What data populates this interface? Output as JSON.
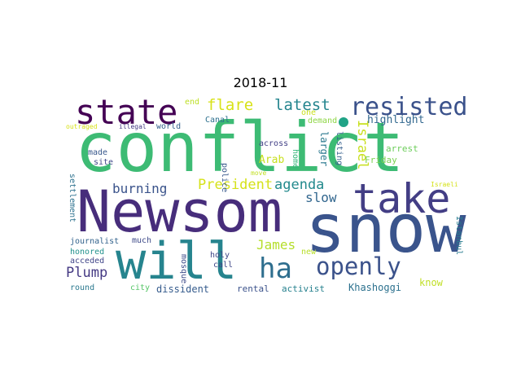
{
  "title": "2018-11",
  "words": [
    {
      "text": "conflict",
      "color": "#3dbb74",
      "vertical": false
    },
    {
      "text": "Newsom",
      "color": "#472d7b",
      "vertical": false
    },
    {
      "text": "snow",
      "color": "#3a548c",
      "vertical": false
    },
    {
      "text": "will",
      "color": "#26848e",
      "vertical": false
    },
    {
      "text": "take",
      "color": "#433e85",
      "vertical": false
    },
    {
      "text": "state",
      "color": "#440154",
      "vertical": false
    },
    {
      "text": "ha",
      "color": "#2e6e8e",
      "vertical": false
    },
    {
      "text": "openly",
      "color": "#3b528b",
      "vertical": false
    },
    {
      "text": "resisted",
      "color": "#3b528b",
      "vertical": false
    },
    {
      "text": "flare",
      "color": "#d8e219",
      "vertical": false
    },
    {
      "text": "latest",
      "color": "#25858e",
      "vertical": false
    },
    {
      "text": "President",
      "color": "#d5e21a",
      "vertical": false
    },
    {
      "text": "agenda",
      "color": "#238a8d",
      "vertical": false
    },
    {
      "text": "burning",
      "color": "#3a538b",
      "vertical": false
    },
    {
      "text": "slow",
      "color": "#31668e",
      "vertical": false
    },
    {
      "text": "Plump",
      "color": "#443983",
      "vertical": false
    },
    {
      "text": "James",
      "color": "#b5de2b",
      "vertical": false
    },
    {
      "text": "Israel",
      "color": "#c8e020",
      "vertical": true
    },
    {
      "text": "conflict-dot",
      "color": "#20a386",
      "vertical": false
    },
    {
      "text": "highlight",
      "color": "#31678e",
      "vertical": false
    },
    {
      "text": "end",
      "color": "#bddf26",
      "vertical": false
    },
    {
      "text": "Canal",
      "color": "#2d708e",
      "vertical": false
    },
    {
      "text": "world",
      "color": "#34618d",
      "vertical": false
    },
    {
      "text": "one",
      "color": "#cae11f",
      "vertical": false
    },
    {
      "text": "demand",
      "color": "#8ed645",
      "vertical": false
    },
    {
      "text": "home",
      "color": "#34b679",
      "vertical": true
    },
    {
      "text": "outraged",
      "color": "#d8e219",
      "vertical": false
    },
    {
      "text": "illegal",
      "color": "#443983",
      "vertical": false
    },
    {
      "text": "across",
      "color": "#424086",
      "vertical": false
    },
    {
      "text": "larger",
      "color": "#2a788e",
      "vertical": true
    },
    {
      "text": "listing",
      "color": "#355f8d",
      "vertical": true
    },
    {
      "text": "arrest",
      "color": "#6ccd5a",
      "vertical": false
    },
    {
      "text": "made",
      "color": "#38588c",
      "vertical": false
    },
    {
      "text": "site",
      "color": "#3f4889",
      "vertical": false
    },
    {
      "text": "Arab",
      "color": "#c8e020",
      "vertical": false
    },
    {
      "text": "police",
      "color": "#38598c",
      "vertical": true
    },
    {
      "text": "Friday",
      "color": "#7ad151",
      "vertical": false
    },
    {
      "text": "move",
      "color": "#c2df23",
      "vertical": false
    },
    {
      "text": "Israeli",
      "color": "#d5e21a",
      "vertical": false
    },
    {
      "text": "settlement",
      "color": "#2c718e",
      "vertical": true
    },
    {
      "text": "Istanbul",
      "color": "#287c8e",
      "vertical": true
    },
    {
      "text": "journalist",
      "color": "#33638d",
      "vertical": false
    },
    {
      "text": "much",
      "color": "#3e4a89",
      "vertical": false
    },
    {
      "text": "mosque",
      "color": "#3e4c8a",
      "vertical": true
    },
    {
      "text": "new",
      "color": "#b8de29",
      "vertical": false
    },
    {
      "text": "holy",
      "color": "#3f4788",
      "vertical": false
    },
    {
      "text": "honored",
      "color": "#21918c",
      "vertical": false
    },
    {
      "text": "acceded",
      "color": "#404588",
      "vertical": false
    },
    {
      "text": "call",
      "color": "#3f4788",
      "vertical": false
    },
    {
      "text": "round",
      "color": "#2a788e",
      "vertical": false
    },
    {
      "text": "city",
      "color": "#56c667",
      "vertical": false
    },
    {
      "text": "dissident",
      "color": "#365c8d",
      "vertical": false
    },
    {
      "text": "rental",
      "color": "#3b528b",
      "vertical": false
    },
    {
      "text": "activist",
      "color": "#26818e",
      "vertical": false
    },
    {
      "text": "Khashoggi",
      "color": "#2c718e",
      "vertical": false
    },
    {
      "text": "know",
      "color": "#c0df25",
      "vertical": false
    }
  ]
}
